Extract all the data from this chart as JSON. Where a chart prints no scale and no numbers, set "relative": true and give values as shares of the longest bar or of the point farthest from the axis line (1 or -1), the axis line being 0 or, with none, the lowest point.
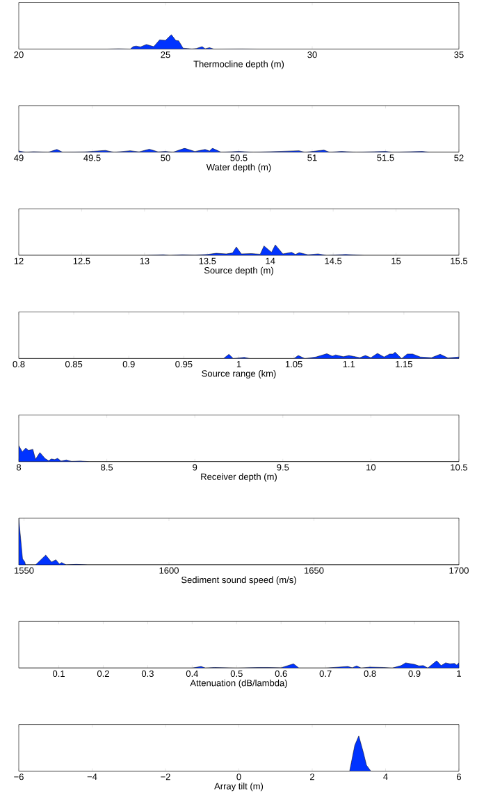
{
  "chart_data": [
    {
      "type": "area",
      "relative": true,
      "tick_labels": "x",
      "color": "#0033ff",
      "xlabel": "Thermocline depth (m)",
      "xlim": [
        20,
        35
      ],
      "xticks": [
        20,
        25,
        30,
        35
      ],
      "x": [
        20,
        23.0,
        23.4,
        23.8,
        23.9,
        24.0,
        24.15,
        24.35,
        24.6,
        24.8,
        25.0,
        25.2,
        25.35,
        25.45,
        25.6,
        25.75,
        25.9,
        26.05,
        26.25,
        26.35,
        26.5,
        26.65,
        27.6,
        28.2,
        35
      ],
      "values": [
        0,
        0,
        0.02,
        0,
        0.17,
        0.21,
        0.15,
        0.32,
        0.17,
        0.64,
        0.6,
        1,
        0.6,
        0.57,
        0.06,
        0.04,
        0.01,
        0.04,
        0.17,
        0.02,
        0.1,
        0,
        0.01,
        0,
        0
      ]
    },
    {
      "type": "area",
      "relative": true,
      "tick_labels": "x",
      "color": "#0033ff",
      "xlabel": "Water depth (m)",
      "xlim": [
        49,
        52
      ],
      "xticks": [
        49,
        49.5,
        50,
        50.5,
        51,
        51.5,
        52
      ],
      "x": [
        49.0,
        49.05,
        49.1,
        49.2,
        49.26,
        49.3,
        49.45,
        49.59,
        49.65,
        49.76,
        49.82,
        49.89,
        49.95,
        50.0,
        50.05,
        50.13,
        50.2,
        50.27,
        50.3,
        50.32,
        50.38,
        50.5,
        50.6,
        50.91,
        50.95,
        51.08,
        51.12,
        51.2,
        51.3,
        51.5,
        51.55,
        51.75,
        51.8,
        52
      ],
      "values": [
        0.31,
        0,
        0.15,
        0,
        0.69,
        0,
        0.1,
        0.46,
        0,
        0.38,
        0.1,
        0.77,
        0.1,
        0.23,
        0,
        1,
        0.2,
        0.69,
        0.3,
        1,
        0,
        0.23,
        0,
        0.38,
        0,
        0.54,
        0,
        0.23,
        0,
        0.23,
        0,
        0.23,
        0,
        0
      ]
    },
    {
      "type": "area",
      "relative": true,
      "tick_labels": "x",
      "color": "#0033ff",
      "xlabel": "Source depth (m)",
      "xlim": [
        12,
        15.5
      ],
      "xticks": [
        12,
        12.5,
        13,
        13.5,
        14,
        14.5,
        15,
        15.5
      ],
      "x": [
        12,
        13.0,
        13.15,
        13.2,
        13.3,
        13.4,
        13.5,
        13.57,
        13.65,
        13.7,
        13.73,
        13.77,
        13.85,
        13.92,
        13.95,
        14.01,
        14.04,
        14.1,
        14.17,
        14.2,
        14.23,
        14.3,
        14.38,
        14.45,
        14.6,
        14.75,
        15.5
      ],
      "values": [
        0,
        0,
        0.06,
        0,
        0.06,
        0.03,
        0.09,
        0.2,
        0.14,
        0.23,
        0.8,
        0.14,
        0.17,
        0.11,
        0.89,
        0.29,
        1,
        0.14,
        0.29,
        0.09,
        0.26,
        0.06,
        0.14,
        0,
        0.09,
        0,
        0
      ]
    },
    {
      "type": "area",
      "relative": true,
      "tick_labels": "x",
      "color": "#0033ff",
      "xlabel": "Source range (km)",
      "xlim": [
        0.8,
        1.2
      ],
      "xticks": [
        0.8,
        0.85,
        0.9,
        0.95,
        1,
        1.05,
        1.1,
        1.15
      ],
      "x": [
        0.8,
        0.986,
        0.991,
        0.995,
        1.005,
        1.01,
        1.05,
        1.054,
        1.06,
        1.07,
        1.08,
        1.085,
        1.088,
        1.095,
        1.1,
        1.11,
        1.115,
        1.12,
        1.126,
        1.132,
        1.137,
        1.14,
        1.142,
        1.148,
        1.153,
        1.158,
        1.165,
        1.175,
        1.183,
        1.19,
        1.2
      ],
      "values": [
        0,
        0,
        0.67,
        0,
        0.19,
        0,
        0,
        0.48,
        0,
        0.24,
        0.76,
        0.38,
        0.57,
        0.29,
        0.48,
        0.14,
        0.48,
        0.14,
        0.81,
        0.24,
        0.71,
        0.71,
        1,
        0,
        0.71,
        0.71,
        0.24,
        0.14,
        0.67,
        0.1,
        0.24
      ]
    },
    {
      "type": "area",
      "relative": true,
      "tick_labels": "x",
      "color": "#0033ff",
      "xlabel": "Receiver depth (m)",
      "xlim": [
        8,
        10.5
      ],
      "xticks": [
        8,
        8.5,
        9,
        9.5,
        10,
        10.5
      ],
      "x": [
        8.0,
        8.02,
        8.04,
        8.055,
        8.08,
        8.095,
        8.12,
        8.15,
        8.17,
        8.185,
        8.205,
        8.22,
        8.24,
        8.27,
        8.3,
        8.35,
        8.4,
        10.5
      ],
      "values": [
        1,
        0.62,
        0.85,
        0.7,
        0.77,
        0.15,
        0.57,
        0.19,
        0.06,
        0.17,
        0.13,
        0.21,
        0.04,
        0.11,
        0.02,
        0.04,
        0,
        0
      ]
    },
    {
      "type": "area",
      "relative": true,
      "tick_labels": "x",
      "color": "#0033ff",
      "xlabel": "Sediment sound speed (m/s)",
      "xlim": [
        1548.2,
        1700
      ],
      "xticks": [
        1550,
        1600,
        1650,
        1700
      ],
      "x": [
        1548.2,
        1549.5,
        1550.3,
        1550.5,
        1554,
        1557.5,
        1559.5,
        1561,
        1562.2,
        1563,
        1564.5,
        1568,
        1572,
        1700
      ],
      "values": [
        1,
        0.13,
        0.06,
        0,
        0,
        0.21,
        0.06,
        0.11,
        0.02,
        0.05,
        0,
        0.01,
        0,
        0
      ]
    },
    {
      "type": "area",
      "relative": true,
      "tick_labels": "x",
      "color": "#0033ff",
      "xlabel": "Attenuation (dB/lambda)",
      "xlim": [
        0.01,
        1
      ],
      "xticks": [
        0.1,
        0.2,
        0.3,
        0.4,
        0.5,
        0.6,
        0.7,
        0.8,
        0.9,
        1
      ],
      "x": [
        0.01,
        0.4,
        0.42,
        0.43,
        0.45,
        0.5,
        0.55,
        0.57,
        0.6,
        0.628,
        0.64,
        0.7,
        0.73,
        0.75,
        0.76,
        0.77,
        0.78,
        0.8,
        0.83,
        0.85,
        0.87,
        0.88,
        0.9,
        0.91,
        0.92,
        0.93,
        0.95,
        0.96,
        0.97,
        0.98,
        0.99,
        0.995,
        1.0
      ],
      "values": [
        0,
        0,
        0.21,
        0,
        0.08,
        0,
        0.08,
        0.08,
        0.04,
        0.58,
        0,
        0,
        0.13,
        0.21,
        0.04,
        0.29,
        0,
        0.13,
        0.08,
        0,
        0.33,
        0.71,
        0.5,
        0.29,
        0.33,
        0,
        1,
        0.33,
        0.71,
        0.58,
        0.63,
        0.42,
        0.71
      ]
    },
    {
      "type": "area",
      "relative": true,
      "tick_labels": "x",
      "color": "#0033ff",
      "xlabel": "Array tilt (m)",
      "xlim": [
        -6,
        6
      ],
      "xticks": [
        {
          "value": -6,
          "label": "−6"
        },
        {
          "value": -4,
          "label": "−4"
        },
        {
          "value": -2,
          "label": "−2"
        },
        0,
        2,
        4,
        6
      ],
      "x": [
        -6,
        3.02,
        3.16,
        3.27,
        3.4,
        3.48,
        3.6,
        6
      ],
      "values": [
        0,
        0,
        0.73,
        1,
        0.51,
        0.17,
        0,
        0
      ]
    }
  ]
}
